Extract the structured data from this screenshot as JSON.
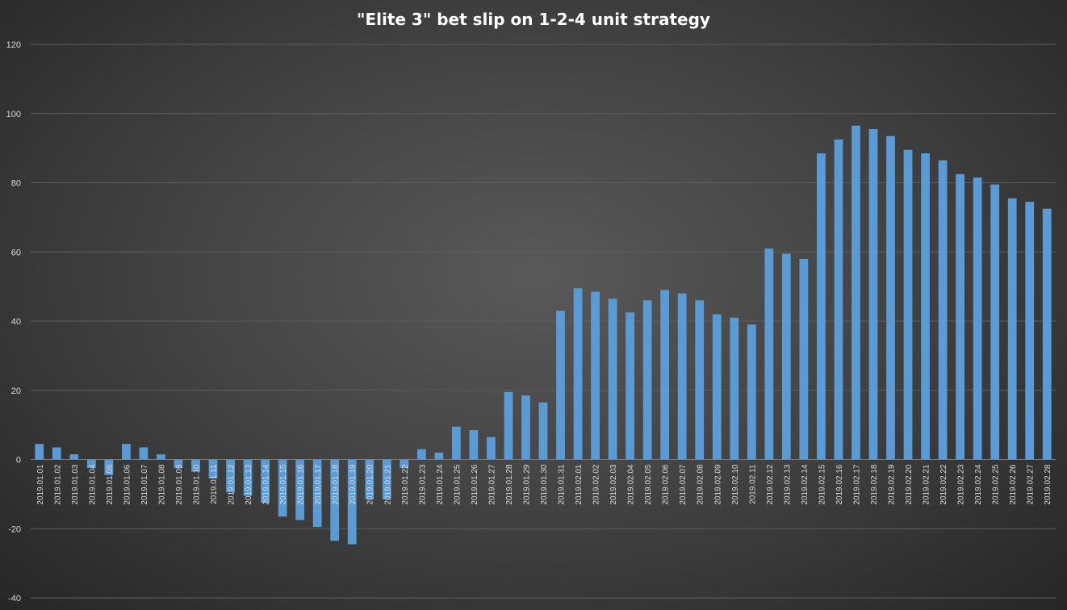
{
  "chart_data": {
    "type": "bar",
    "title": "\"Elite 3\" bet slip on 1-2-4 unit strategy",
    "xlabel": "",
    "ylabel": "",
    "ylim": [
      -40,
      120
    ],
    "yticks": [
      120,
      100,
      80,
      60,
      40,
      20,
      0,
      -20,
      -40
    ],
    "grid": true,
    "bar_color": "#5b9bd5",
    "categories": [
      "2019.01.01",
      "2019.01.02",
      "2019.01.03",
      "2019.01.04",
      "2019.01.05",
      "2019.01.06",
      "2019.01.07",
      "2019.01.08",
      "2019.01.09",
      "2019.01.10",
      "2019.01.11",
      "2019.01.12",
      "2019.01.13",
      "2019.01.14",
      "2019.01.15",
      "2019.01.16",
      "2019.01.17",
      "2019.01.18",
      "2019.01.19",
      "2019.01.20",
      "2019.01.21",
      "2019.01.22",
      "2019.01.23",
      "2019.01.24",
      "2019.01.25",
      "2019.01.26",
      "2019.01.27",
      "2019.01.28",
      "2019.01.29",
      "2019.01.30",
      "2019.01.31",
      "2019.02.01",
      "2019.02.02",
      "2019.02.03",
      "2019.02.04",
      "2019.02.05",
      "2019.02.06",
      "2019.02.07",
      "2019.02.08",
      "2019.02.09",
      "2019.02.10",
      "2019.02.11",
      "2019.02.12",
      "2019.02.13",
      "2019.02.14",
      "2019.02.15",
      "2019.02.16",
      "2019.02.17",
      "2019.02.18",
      "2019.02.19",
      "2019.02.20",
      "2019.02.21",
      "2019.02.22",
      "2019.02.23",
      "2019.02.24",
      "2019.02.25",
      "2019.02.26",
      "2019.02.27",
      "2019.02.28"
    ],
    "values": [
      4.5,
      3.5,
      1.5,
      -2.5,
      -4.5,
      4.5,
      3.5,
      1.5,
      -2.5,
      -3.5,
      -5.5,
      -9.5,
      -10.5,
      -12.5,
      -16.5,
      -17.5,
      -19.5,
      -23.5,
      -24.5,
      -11.5,
      -11.5,
      -2.5,
      3,
      2,
      9.5,
      8.5,
      6.5,
      19.5,
      18.5,
      16.5,
      43,
      49.5,
      48.5,
      46.5,
      42.5,
      46,
      49,
      48,
      46,
      42,
      41,
      39,
      61,
      59.5,
      58,
      88.5,
      92.5,
      96.5,
      95.5,
      93.5,
      89.5,
      88.5,
      86.5,
      82.5,
      81.5,
      79.5,
      75.5,
      74.5,
      72.5
    ]
  }
}
